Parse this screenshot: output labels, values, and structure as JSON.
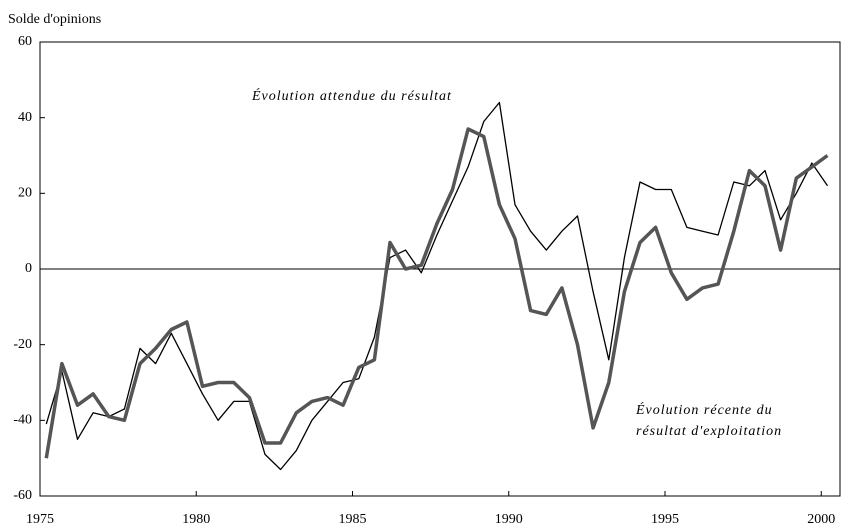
{
  "chart_data": {
    "type": "line",
    "ylabel": "Solde d'opinions",
    "annotations": [
      "Évolution attendue du résultat",
      "Évolution récente du",
      "résultat d'exploitation"
    ],
    "x": [
      1975.2,
      1975.7,
      1976.2,
      1976.7,
      1977.2,
      1977.7,
      1978.2,
      1978.7,
      1979.2,
      1979.7,
      1980.2,
      1980.7,
      1981.2,
      1981.7,
      1982.2,
      1982.7,
      1983.2,
      1983.7,
      1984.2,
      1984.7,
      1985.2,
      1985.7,
      1986.2,
      1986.7,
      1987.2,
      1987.7,
      1988.2,
      1988.7,
      1989.2,
      1989.7,
      1990.2,
      1990.7,
      1991.2,
      1991.7,
      1992.2,
      1992.7,
      1993.2,
      1993.7,
      1994.2,
      1994.7,
      1995.2,
      1995.7,
      1996.2,
      1996.7,
      1997.2,
      1997.7,
      1998.2,
      1998.7,
      1999.2,
      1999.7,
      2000.2
    ],
    "series": [
      {
        "color": "#000000",
        "values": [
          -41,
          -27,
          -45,
          -38,
          -39,
          -37,
          -21,
          -25,
          -17,
          -25,
          -33,
          -40,
          -35,
          -35,
          -49,
          -53,
          -48,
          -40,
          -35,
          -30,
          -29,
          -18,
          3,
          5,
          -1,
          9,
          18,
          27,
          39,
          44,
          17,
          10,
          5,
          10,
          14,
          -6,
          -24,
          3,
          23,
          21,
          21,
          11,
          10,
          9,
          23,
          22,
          26,
          13,
          20,
          28,
          22
        ]
      },
      {
        "color": "#555555",
        "values": [
          -50,
          -25,
          -36,
          -33,
          -39,
          -40,
          -25,
          -21,
          -16,
          -14,
          -31,
          -30,
          -30,
          -34,
          -46,
          -46,
          -38,
          -35,
          -34,
          -36,
          -26,
          -24,
          7,
          0,
          1,
          12,
          21,
          37,
          35,
          17,
          8,
          -11,
          -12,
          -5,
          -20,
          -42,
          -30,
          -6,
          7,
          11,
          -1,
          -8,
          -5,
          -4,
          10,
          26,
          22,
          5,
          24,
          27,
          30
        ]
      }
    ],
    "xlim": [
      1975,
      2000.6
    ],
    "xticks": [
      1975,
      1980,
      1985,
      1990,
      1995,
      2000
    ],
    "ylim": [
      -60,
      60
    ],
    "yticks": [
      -60,
      -40,
      -20,
      0,
      20,
      40,
      60
    ]
  }
}
